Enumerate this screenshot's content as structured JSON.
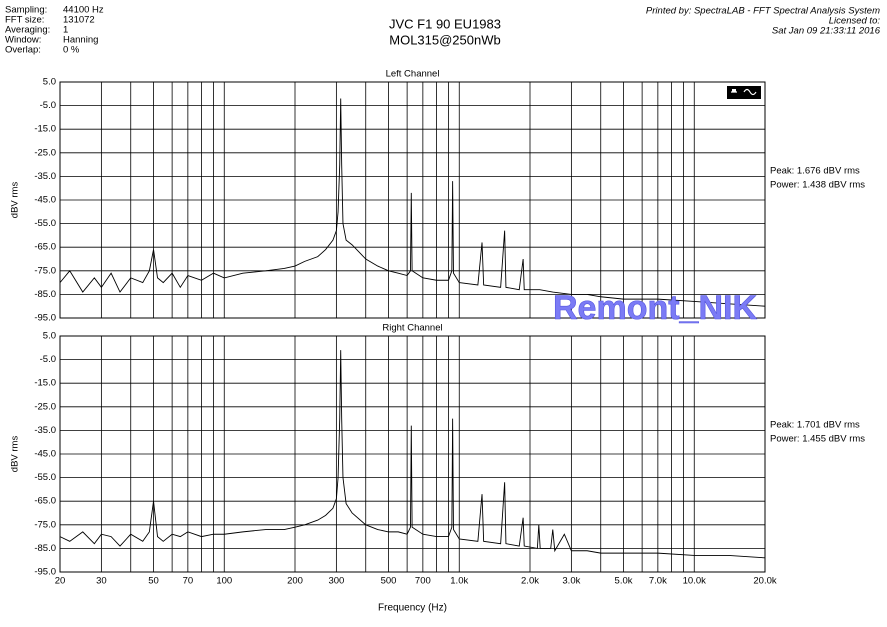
{
  "header": {
    "settings": [
      [
        "Sampling:",
        "44100 Hz"
      ],
      [
        "FFT size:",
        "131072"
      ],
      [
        "Averaging:",
        "1"
      ],
      [
        "Window:",
        "Hanning"
      ],
      [
        "Overlap:",
        "0 %"
      ]
    ],
    "title": "JVC F1 90 EU1983",
    "subtitle": "MOL315@250nWb",
    "printed_by": "Printed by: SpectraLAB - FFT Spectral Analysis System",
    "licensed": "Licensed to:",
    "date": "Sat Jan 09 21:33:11 2016"
  },
  "watermark": "Remont_NIK",
  "chart_data": [
    {
      "type": "line",
      "title": "Left Channel",
      "ylabel": "dBV rms",
      "xscale": "log",
      "grid": true,
      "xlim": [
        20,
        20000
      ],
      "ylim": [
        -95,
        5
      ],
      "yticks": [
        {
          "value": 5,
          "label": "5.0"
        },
        {
          "value": -5,
          "label": "-5.0"
        },
        {
          "value": -15,
          "label": "-15.0"
        },
        {
          "value": -25,
          "label": "-25.0"
        },
        {
          "value": -35,
          "label": "-35.0"
        },
        {
          "value": -45,
          "label": "-45.0"
        },
        {
          "value": -55,
          "label": "-55.0"
        },
        {
          "value": -65,
          "label": "-65.0"
        },
        {
          "value": -75,
          "label": "-75.0"
        },
        {
          "value": -85,
          "label": "-85.0"
        },
        {
          "value": -95,
          "label": "-95.0"
        }
      ],
      "xgrid": [
        20,
        30,
        40,
        50,
        60,
        70,
        80,
        90,
        100,
        200,
        300,
        400,
        500,
        600,
        700,
        800,
        900,
        1000,
        2000,
        3000,
        4000,
        5000,
        6000,
        7000,
        8000,
        9000,
        10000,
        20000
      ],
      "annotations": [
        "Peak: 1.676 dBV rms",
        "Power: 1.438 dBV rms"
      ],
      "x": [
        20,
        22,
        25,
        28,
        30,
        33,
        36,
        40,
        45,
        48,
        50,
        52,
        55,
        60,
        65,
        70,
        80,
        90,
        100,
        120,
        150,
        180,
        200,
        220,
        250,
        270,
        290,
        300,
        305,
        310,
        313,
        316,
        320,
        330,
        350,
        400,
        450,
        500,
        550,
        600,
        620,
        625,
        630,
        700,
        800,
        900,
        930,
        937,
        945,
        1000,
        1200,
        1250,
        1270,
        1500,
        1560,
        1580,
        1800,
        1870,
        1890,
        2200,
        2500,
        3000,
        3500,
        4000,
        5000,
        7000,
        10000,
        14000,
        20000
      ],
      "series": [
        {
          "color": "#000000",
          "values": [
            -80,
            -75,
            -84,
            -78,
            -82,
            -76,
            -84,
            -78,
            -80,
            -75,
            -66,
            -78,
            -80,
            -76,
            -82,
            -77,
            -79,
            -76,
            -78,
            -76,
            -75,
            -74,
            -73,
            -71,
            -69,
            -66,
            -62,
            -58,
            -50,
            -30,
            -2,
            -30,
            -55,
            -62,
            -64,
            -70,
            -73,
            -75,
            -76,
            -77,
            -75,
            -42,
            -75,
            -78,
            -79,
            -79,
            -75,
            -37,
            -76,
            -80,
            -81,
            -63,
            -81,
            -82,
            -58,
            -82,
            -83,
            -70,
            -83,
            -83,
            -84,
            -85,
            -85,
            -86,
            -87,
            -87,
            -88,
            -89,
            -90
          ]
        }
      ]
    },
    {
      "type": "line",
      "title": "Right Channel",
      "ylabel": "dBV rms",
      "xlabel": "Frequency (Hz)",
      "xscale": "log",
      "grid": true,
      "xlim": [
        20,
        20000
      ],
      "ylim": [
        -95,
        5
      ],
      "yticks": [
        {
          "value": 5,
          "label": "5.0"
        },
        {
          "value": -5,
          "label": "-5.0"
        },
        {
          "value": -15,
          "label": "-15.0"
        },
        {
          "value": -25,
          "label": "-25.0"
        },
        {
          "value": -35,
          "label": "-35.0"
        },
        {
          "value": -45,
          "label": "-45.0"
        },
        {
          "value": -55,
          "label": "-55.0"
        },
        {
          "value": -65,
          "label": "-65.0"
        },
        {
          "value": -75,
          "label": "-75.0"
        },
        {
          "value": -85,
          "label": "-85.0"
        },
        {
          "value": -95,
          "label": "-95.0"
        }
      ],
      "xticks": [
        20,
        30,
        50,
        70,
        100,
        200,
        300,
        500,
        700,
        {
          "value": 1000,
          "label": "1.0k"
        },
        {
          "value": 2000,
          "label": "2.0k"
        },
        {
          "value": 3000,
          "label": "3.0k"
        },
        {
          "value": 5000,
          "label": "5.0k"
        },
        {
          "value": 7000,
          "label": "7.0k"
        },
        {
          "value": 10000,
          "label": "10.0k"
        },
        {
          "value": 20000,
          "label": "20.0k"
        }
      ],
      "xgrid_minor": [
        40,
        60,
        80,
        90,
        400,
        600,
        800,
        900,
        4000,
        6000,
        8000,
        9000
      ],
      "annotations": [
        "Peak: 1.701 dBV rms",
        "Power: 1.455 dBV rms"
      ],
      "x": [
        20,
        22,
        25,
        28,
        30,
        33,
        36,
        40,
        45,
        48,
        50,
        52,
        55,
        60,
        65,
        70,
        80,
        90,
        100,
        120,
        150,
        180,
        200,
        220,
        250,
        270,
        290,
        300,
        305,
        310,
        313,
        316,
        320,
        330,
        350,
        400,
        450,
        500,
        550,
        600,
        620,
        625,
        630,
        700,
        800,
        900,
        930,
        937,
        945,
        1000,
        1200,
        1250,
        1270,
        1500,
        1560,
        1580,
        1800,
        1870,
        1890,
        2150,
        2180,
        2210,
        2450,
        2500,
        2550,
        2800,
        3000,
        3500,
        4000,
        5000,
        7000,
        10000,
        14000,
        20000
      ],
      "series": [
        {
          "color": "#000000",
          "values": [
            -80,
            -82,
            -78,
            -83,
            -79,
            -80,
            -84,
            -79,
            -82,
            -78,
            -65,
            -80,
            -82,
            -79,
            -80,
            -78,
            -80,
            -79,
            -79,
            -78,
            -77,
            -77,
            -76,
            -75,
            -73,
            -71,
            -68,
            -64,
            -55,
            -30,
            -1,
            -30,
            -55,
            -66,
            -70,
            -75,
            -77,
            -78,
            -78,
            -79,
            -76,
            -33,
            -76,
            -79,
            -80,
            -80,
            -76,
            -30,
            -77,
            -81,
            -82,
            -62,
            -82,
            -83,
            -57,
            -83,
            -84,
            -72,
            -84,
            -85,
            -75,
            -85,
            -85,
            -77,
            -86,
            -79,
            -86,
            -86,
            -87,
            -87,
            -87,
            -88,
            -88,
            -89
          ]
        }
      ]
    }
  ]
}
